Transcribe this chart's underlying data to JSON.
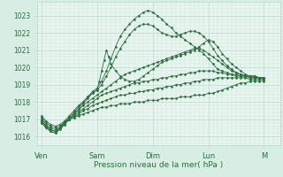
{
  "xlabel": "Pression niveau de la mer( hPa )",
  "ylim": [
    1015.5,
    1023.8
  ],
  "xlim": [
    0,
    105
  ],
  "background_color": "#d8ede4",
  "plot_bg_color": "#e8f5f0",
  "grid_major_color": "#b8d8cc",
  "grid_minor_color": "#cce8dc",
  "line_color": "#2d6e3e",
  "day_labels": [
    "Ven",
    "Sam",
    "Dim",
    "Lun",
    "M"
  ],
  "day_positions": [
    2,
    26,
    50,
    74,
    98
  ],
  "yticks": [
    1016,
    1017,
    1018,
    1019,
    1020,
    1021,
    1022,
    1023
  ],
  "lines": [
    {
      "x": [
        2,
        4,
        6,
        8,
        10,
        12,
        14,
        16,
        18,
        20,
        22,
        24,
        26,
        28,
        30,
        32,
        34,
        36,
        38,
        40,
        42,
        44,
        46,
        48,
        50,
        52,
        54,
        56,
        58,
        60,
        62,
        64,
        66,
        68,
        70,
        72,
        74,
        76,
        78,
        80,
        82,
        84,
        86,
        88,
        90,
        92,
        94,
        96,
        98
      ],
      "y": [
        1016.8,
        1016.5,
        1016.3,
        1016.2,
        1016.5,
        1016.9,
        1017.2,
        1017.5,
        1017.8,
        1018.0,
        1018.3,
        1018.6,
        1018.8,
        1019.2,
        1019.8,
        1020.5,
        1021.2,
        1021.8,
        1022.2,
        1022.5,
        1022.8,
        1023.0,
        1023.2,
        1023.3,
        1023.2,
        1023.0,
        1022.8,
        1022.5,
        1022.3,
        1022.0,
        1021.8,
        1021.6,
        1021.4,
        1021.2,
        1021.0,
        1020.8,
        1020.5,
        1020.2,
        1019.9,
        1019.8,
        1019.7,
        1019.6,
        1019.6,
        1019.5,
        1019.5,
        1019.4,
        1019.4,
        1019.4,
        1019.3
      ]
    },
    {
      "x": [
        2,
        4,
        6,
        8,
        10,
        12,
        14,
        16,
        18,
        20,
        22,
        24,
        26,
        28,
        30,
        32,
        34,
        36,
        38,
        40,
        42,
        44,
        46,
        48,
        50,
        52,
        54,
        56,
        58,
        60,
        62,
        64,
        66,
        68,
        70,
        72,
        74,
        76,
        78,
        80,
        82,
        84,
        86,
        88,
        90,
        92,
        94,
        96,
        98
      ],
      "y": [
        1016.8,
        1016.5,
        1016.3,
        1016.2,
        1016.4,
        1016.7,
        1017.0,
        1017.3,
        1017.6,
        1017.9,
        1018.2,
        1018.5,
        1018.7,
        1019.0,
        1019.5,
        1020.0,
        1020.6,
        1021.1,
        1021.5,
        1021.9,
        1022.2,
        1022.4,
        1022.5,
        1022.5,
        1022.4,
        1022.2,
        1022.0,
        1021.9,
        1021.8,
        1021.8,
        1021.9,
        1022.0,
        1022.1,
        1022.1,
        1022.0,
        1021.8,
        1021.5,
        1021.1,
        1020.7,
        1020.4,
        1020.1,
        1019.9,
        1019.7,
        1019.6,
        1019.5,
        1019.5,
        1019.5,
        1019.4,
        1019.4
      ]
    },
    {
      "x": [
        2,
        4,
        6,
        8,
        10,
        12,
        14,
        16,
        18,
        20,
        22,
        24,
        26,
        27,
        28,
        29,
        30,
        31,
        32,
        34,
        36,
        38,
        40,
        42,
        44,
        46,
        48,
        50,
        52,
        54,
        56,
        58,
        60,
        62,
        64,
        66,
        68,
        70,
        72,
        74,
        76,
        78,
        80,
        82,
        84,
        86,
        88,
        90,
        92,
        94,
        96,
        98
      ],
      "y": [
        1016.9,
        1016.6,
        1016.4,
        1016.3,
        1016.5,
        1016.8,
        1017.1,
        1017.4,
        1017.7,
        1018.0,
        1018.3,
        1018.5,
        1018.7,
        1019.2,
        1019.8,
        1020.4,
        1021.0,
        1020.6,
        1020.2,
        1019.8,
        1019.5,
        1019.3,
        1019.2,
        1019.2,
        1019.3,
        1019.5,
        1019.7,
        1019.9,
        1020.1,
        1020.3,
        1020.4,
        1020.5,
        1020.6,
        1020.7,
        1020.8,
        1020.9,
        1021.0,
        1021.2,
        1021.4,
        1021.6,
        1021.5,
        1021.2,
        1020.8,
        1020.5,
        1020.2,
        1020.0,
        1019.8,
        1019.6,
        1019.5,
        1019.5,
        1019.4,
        1019.4
      ]
    },
    {
      "x": [
        2,
        4,
        6,
        8,
        10,
        12,
        14,
        16,
        18,
        20,
        22,
        24,
        26,
        28,
        30,
        32,
        34,
        36,
        38,
        40,
        42,
        44,
        46,
        48,
        50,
        52,
        54,
        56,
        58,
        60,
        62,
        64,
        66,
        68,
        70,
        72,
        74,
        76,
        78,
        80,
        82,
        84,
        86,
        88,
        90,
        92,
        94,
        96,
        98
      ],
      "y": [
        1016.9,
        1016.6,
        1016.4,
        1016.3,
        1016.5,
        1016.8,
        1017.0,
        1017.3,
        1017.5,
        1017.8,
        1018.0,
        1018.2,
        1018.4,
        1018.6,
        1018.8,
        1019.0,
        1019.2,
        1019.4,
        1019.6,
        1019.7,
        1019.8,
        1019.9,
        1020.0,
        1020.1,
        1020.2,
        1020.3,
        1020.4,
        1020.5,
        1020.6,
        1020.7,
        1020.8,
        1020.9,
        1021.0,
        1021.1,
        1021.1,
        1021.0,
        1020.8,
        1020.6,
        1020.4,
        1020.2,
        1020.0,
        1019.8,
        1019.7,
        1019.6,
        1019.5,
        1019.5,
        1019.4,
        1019.4,
        1019.4
      ]
    },
    {
      "x": [
        2,
        4,
        6,
        8,
        10,
        12,
        14,
        16,
        18,
        20,
        22,
        24,
        26,
        28,
        30,
        32,
        34,
        36,
        38,
        40,
        42,
        44,
        46,
        48,
        50,
        52,
        54,
        56,
        58,
        60,
        62,
        64,
        66,
        68,
        70,
        72,
        74,
        76,
        78,
        80,
        82,
        84,
        86,
        88,
        90,
        92,
        94,
        96,
        98
      ],
      "y": [
        1017.0,
        1016.7,
        1016.5,
        1016.4,
        1016.5,
        1016.7,
        1017.0,
        1017.2,
        1017.4,
        1017.6,
        1017.8,
        1018.0,
        1018.2,
        1018.4,
        1018.5,
        1018.6,
        1018.7,
        1018.8,
        1018.9,
        1019.0,
        1019.1,
        1019.1,
        1019.2,
        1019.2,
        1019.3,
        1019.3,
        1019.4,
        1019.4,
        1019.5,
        1019.5,
        1019.6,
        1019.6,
        1019.7,
        1019.7,
        1019.8,
        1019.8,
        1019.8,
        1019.8,
        1019.7,
        1019.7,
        1019.6,
        1019.6,
        1019.5,
        1019.5,
        1019.5,
        1019.4,
        1019.4,
        1019.4,
        1019.4
      ]
    },
    {
      "x": [
        2,
        4,
        6,
        8,
        10,
        12,
        14,
        16,
        18,
        20,
        22,
        24,
        26,
        28,
        30,
        32,
        34,
        36,
        38,
        40,
        42,
        44,
        46,
        48,
        50,
        52,
        54,
        56,
        58,
        60,
        62,
        64,
        66,
        68,
        70,
        72,
        74,
        76,
        78,
        80,
        82,
        84,
        86,
        88,
        90,
        92,
        94,
        96,
        98
      ],
      "y": [
        1017.1,
        1016.8,
        1016.6,
        1016.5,
        1016.6,
        1016.8,
        1017.0,
        1017.1,
        1017.3,
        1017.5,
        1017.6,
        1017.8,
        1017.9,
        1018.0,
        1018.1,
        1018.2,
        1018.3,
        1018.4,
        1018.4,
        1018.5,
        1018.5,
        1018.6,
        1018.6,
        1018.7,
        1018.7,
        1018.8,
        1018.8,
        1018.9,
        1018.9,
        1019.0,
        1019.0,
        1019.1,
        1019.1,
        1019.2,
        1019.2,
        1019.3,
        1019.3,
        1019.3,
        1019.4,
        1019.4,
        1019.4,
        1019.4,
        1019.4,
        1019.4,
        1019.4,
        1019.3,
        1019.3,
        1019.3,
        1019.3
      ]
    },
    {
      "x": [
        2,
        4,
        6,
        8,
        10,
        12,
        14,
        16,
        18,
        20,
        22,
        24,
        26,
        28,
        30,
        32,
        34,
        36,
        38,
        40,
        42,
        44,
        46,
        48,
        50,
        52,
        54,
        56,
        58,
        60,
        62,
        64,
        66,
        68,
        70,
        72,
        74,
        76,
        78,
        80,
        82,
        84,
        86,
        88,
        90,
        92,
        94,
        96,
        98
      ],
      "y": [
        1017.2,
        1016.9,
        1016.7,
        1016.6,
        1016.7,
        1016.9,
        1017.0,
        1017.1,
        1017.2,
        1017.3,
        1017.4,
        1017.5,
        1017.6,
        1017.7,
        1017.7,
        1017.8,
        1017.8,
        1017.9,
        1017.9,
        1017.9,
        1018.0,
        1018.0,
        1018.0,
        1018.1,
        1018.1,
        1018.1,
        1018.2,
        1018.2,
        1018.2,
        1018.2,
        1018.3,
        1018.3,
        1018.3,
        1018.4,
        1018.4,
        1018.4,
        1018.5,
        1018.5,
        1018.6,
        1018.7,
        1018.8,
        1018.9,
        1019.0,
        1019.1,
        1019.1,
        1019.2,
        1019.2,
        1019.2,
        1019.2
      ]
    }
  ]
}
